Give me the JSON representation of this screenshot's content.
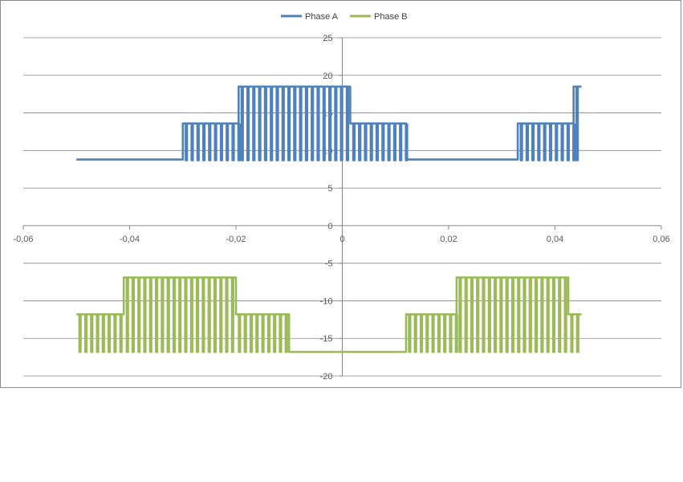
{
  "chart_data": {
    "type": "line",
    "title": "",
    "xlabel": "",
    "ylabel": "",
    "xlim": [
      -0.06,
      0.06
    ],
    "ylim": [
      -20,
      25
    ],
    "x_ticks": [
      -0.06,
      -0.04,
      -0.02,
      0,
      0.02,
      0.04,
      0.06
    ],
    "x_tick_labels": [
      "-0,06",
      "-0,04",
      "-0,02",
      "0",
      "0,02",
      "0,04",
      "0,06"
    ],
    "y_ticks": [
      25,
      20,
      15,
      10,
      5,
      0,
      -5,
      -10,
      -15,
      -20
    ],
    "y_tick_labels": [
      "25",
      "20",
      "15",
      "10",
      "5",
      "0",
      "-5",
      "-10",
      "-15",
      "-20"
    ],
    "grid": true,
    "legend_position": "top-center",
    "series": [
      {
        "name": "Phase A",
        "color": "#4f81bd",
        "x": [
          -0.05,
          -0.03,
          -0.03,
          -0.0195,
          -0.0195,
          0.0015,
          0.0015,
          0.012,
          0.012,
          0.033,
          0.033,
          0.0435,
          0.0435,
          0.045
        ],
        "y": [
          8.8,
          8.8,
          13.6,
          13.6,
          18.5,
          18.5,
          13.6,
          13.6,
          8.8,
          8.8,
          13.6,
          13.6,
          18.5,
          18.5
        ],
        "switching_segments": [
          {
            "x_start": -0.03,
            "x_end": -0.0195,
            "high": 13.6,
            "low": 8.7
          },
          {
            "x_start": -0.0195,
            "x_end": 0.0015,
            "high": 18.5,
            "low": 8.7
          },
          {
            "x_start": 0.0015,
            "x_end": 0.012,
            "high": 13.6,
            "low": 8.7
          },
          {
            "x_start": 0.033,
            "x_end": 0.0435,
            "high": 13.6,
            "low": 8.7
          },
          {
            "x_start": 0.0435,
            "x_end": 0.045,
            "high": 18.5,
            "low": 8.7
          }
        ]
      },
      {
        "name": "Phase B",
        "color": "#9bbb59",
        "x": [
          -0.05,
          -0.0411,
          -0.0411,
          -0.02,
          -0.02,
          -0.01,
          -0.01,
          0.012,
          0.012,
          0.0215,
          0.0215,
          0.0425,
          0.0425,
          0.045
        ],
        "y": [
          -11.8,
          -11.8,
          -6.9,
          -6.9,
          -11.8,
          -11.8,
          -16.8,
          -16.8,
          -11.8,
          -11.8,
          -6.9,
          -6.9,
          -11.8,
          -11.8
        ],
        "switching_segments": [
          {
            "x_start": -0.05,
            "x_end": -0.0411,
            "high": -11.8,
            "low": -16.8
          },
          {
            "x_start": -0.0411,
            "x_end": -0.02,
            "high": -6.9,
            "low": -16.8
          },
          {
            "x_start": -0.02,
            "x_end": -0.01,
            "high": -11.8,
            "low": -16.8
          },
          {
            "x_start": 0.012,
            "x_end": 0.0215,
            "high": -11.8,
            "low": -16.8
          },
          {
            "x_start": 0.0215,
            "x_end": 0.0425,
            "high": -6.9,
            "low": -16.8
          },
          {
            "x_start": 0.0425,
            "x_end": 0.045,
            "high": -11.8,
            "low": -16.8
          }
        ]
      }
    ]
  }
}
